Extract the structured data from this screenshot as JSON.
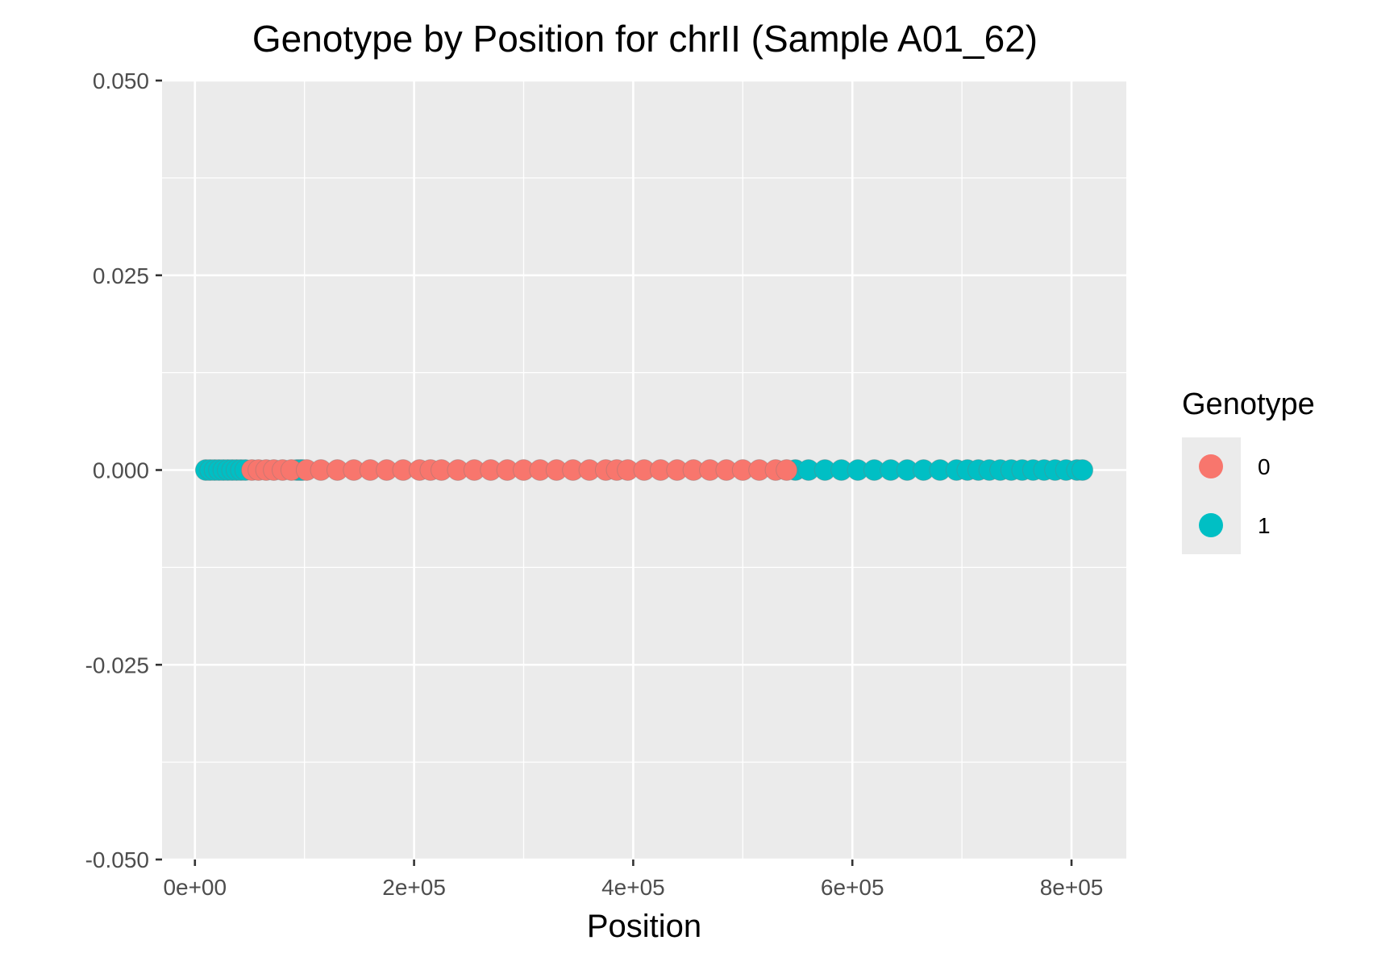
{
  "chart_data": {
    "type": "scatter",
    "title": "Genotype by Position for chrII (Sample A01_62)",
    "xlabel": "Position",
    "ylabel": "",
    "xlim": [
      -30000,
      850000
    ],
    "ylim": [
      -0.05,
      0.05
    ],
    "x_ticks": [
      {
        "value": 0,
        "label": "0e+00"
      },
      {
        "value": 200000,
        "label": "2e+05"
      },
      {
        "value": 400000,
        "label": "4e+05"
      },
      {
        "value": 600000,
        "label": "6e+05"
      },
      {
        "value": 800000,
        "label": "8e+05"
      }
    ],
    "y_ticks": [
      {
        "value": 0.05,
        "label": "0.050"
      },
      {
        "value": 0.025,
        "label": "0.025"
      },
      {
        "value": 0.0,
        "label": "0.000"
      },
      {
        "value": -0.025,
        "label": "-0.025"
      },
      {
        "value": -0.05,
        "label": "-0.050"
      }
    ],
    "grid": true,
    "legend": {
      "title": "Genotype",
      "position": "right",
      "entries": [
        {
          "label": "0",
          "color": "#F8766D"
        },
        {
          "label": "1",
          "color": "#00BFC4"
        }
      ]
    },
    "series": [
      {
        "name": "1",
        "color": "#00BFC4",
        "x": [
          10000,
          14000,
          18000,
          22000,
          26000,
          30000,
          34000,
          38000,
          42000,
          46000,
          93000,
          96000,
          98000,
          548000,
          560000,
          575000,
          590000,
          605000,
          620000,
          635000,
          650000,
          665000,
          680000,
          695000,
          705000,
          715000,
          725000,
          735000,
          745000,
          755000,
          765000,
          775000,
          785000,
          795000,
          805000,
          810000
        ],
        "y": [
          0,
          0,
          0,
          0,
          0,
          0,
          0,
          0,
          0,
          0,
          0,
          0,
          0,
          0,
          0,
          0,
          0,
          0,
          0,
          0,
          0,
          0,
          0,
          0,
          0,
          0,
          0,
          0,
          0,
          0,
          0,
          0,
          0,
          0,
          0,
          0
        ]
      },
      {
        "name": "0",
        "color": "#F8766D",
        "x": [
          52000,
          58000,
          65000,
          72000,
          80000,
          88000,
          102000,
          115000,
          130000,
          145000,
          160000,
          175000,
          190000,
          205000,
          215000,
          225000,
          240000,
          255000,
          270000,
          285000,
          300000,
          315000,
          330000,
          345000,
          360000,
          375000,
          385000,
          395000,
          410000,
          425000,
          440000,
          455000,
          470000,
          485000,
          500000,
          515000,
          530000,
          540000
        ],
        "y": [
          0,
          0,
          0,
          0,
          0,
          0,
          0,
          0,
          0,
          0,
          0,
          0,
          0,
          0,
          0,
          0,
          0,
          0,
          0,
          0,
          0,
          0,
          0,
          0,
          0,
          0,
          0,
          0,
          0,
          0,
          0,
          0,
          0,
          0,
          0,
          0,
          0,
          0
        ]
      }
    ]
  }
}
